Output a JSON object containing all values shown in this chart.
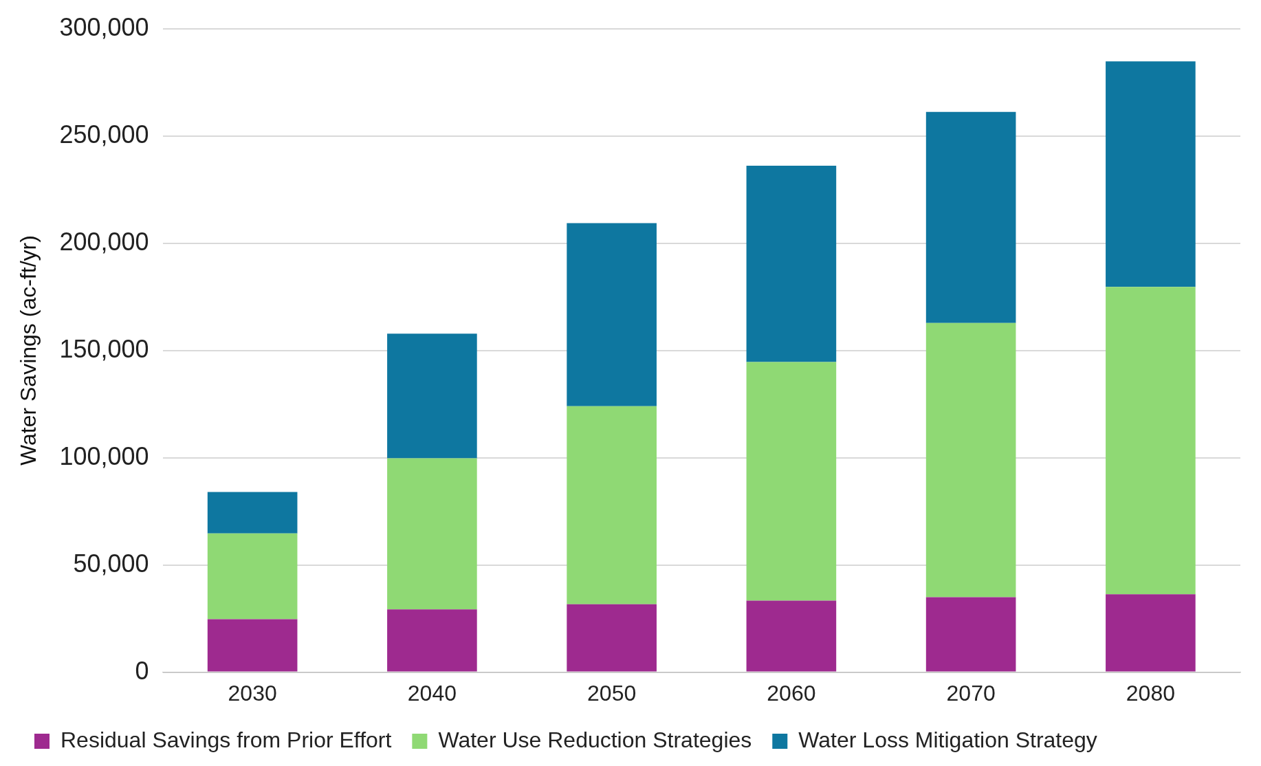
{
  "chart_data": {
    "type": "bar",
    "stacked": true,
    "ylabel": "Water Savings (ac-ft/yr)",
    "categories": [
      "2030",
      "2040",
      "2050",
      "2060",
      "2070",
      "2080"
    ],
    "series": [
      {
        "name": "Residual Savings from Prior Effort",
        "color": "#9e2a8f",
        "values": [
          24700,
          29300,
          31700,
          33400,
          35000,
          36300
        ]
      },
      {
        "name": "Water Use Reduction Strategies",
        "color": "#8fd974",
        "values": [
          40000,
          70400,
          92300,
          111200,
          127800,
          143300
        ]
      },
      {
        "name": "Water Loss Mitigation Strategy",
        "color": "#0e77a0",
        "values": [
          19300,
          58100,
          85300,
          91500,
          98400,
          105100
        ]
      }
    ],
    "ylim": [
      0,
      300000
    ],
    "yticks": [
      {
        "value": 0,
        "label": "0"
      },
      {
        "value": 50000,
        "label": "50,000"
      },
      {
        "value": 100000,
        "label": "100,000"
      },
      {
        "value": 150000,
        "label": "150,000"
      },
      {
        "value": 200000,
        "label": "200,000"
      },
      {
        "value": 250000,
        "label": "250,000"
      },
      {
        "value": 300000,
        "label": "300,000"
      }
    ],
    "grid": "y",
    "legend": "bottom"
  }
}
